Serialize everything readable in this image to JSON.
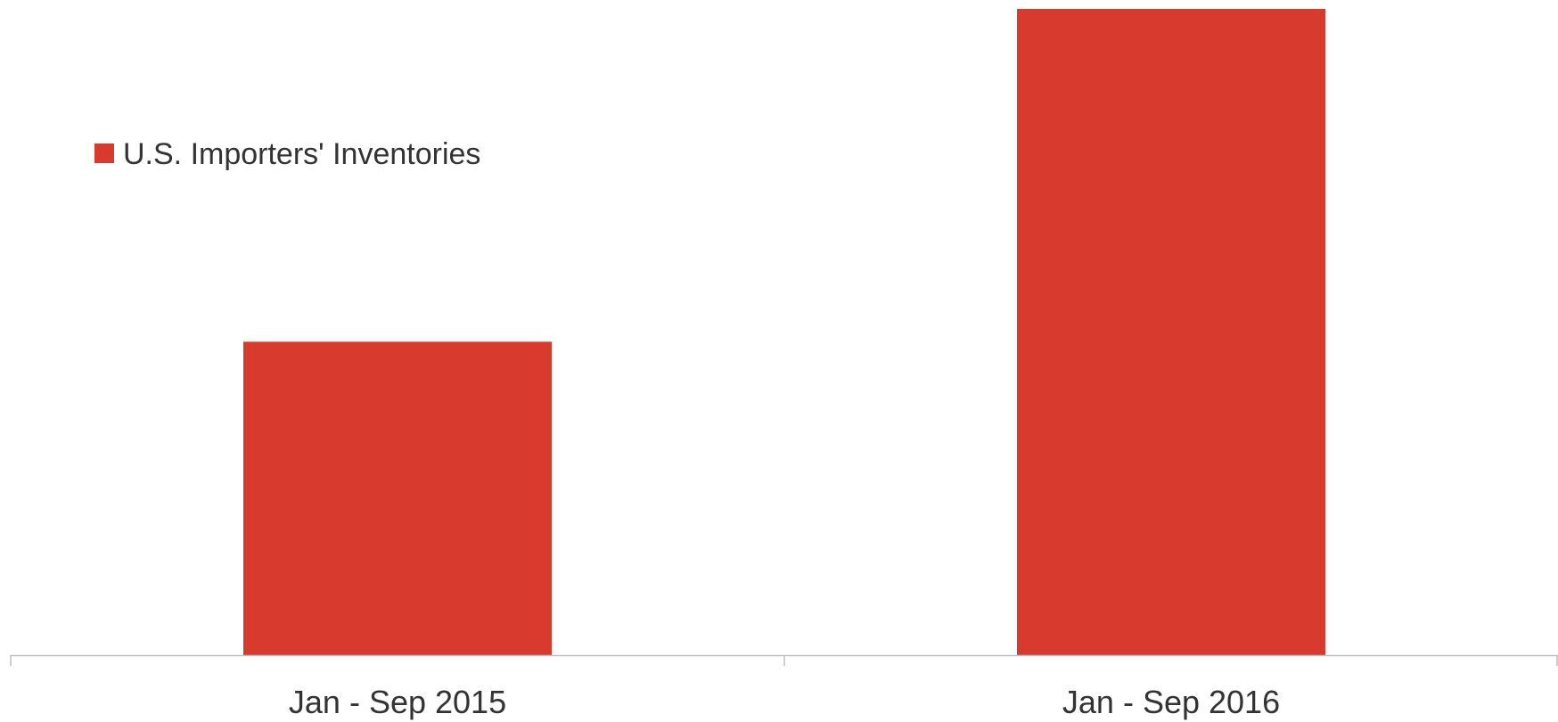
{
  "chart_data": {
    "type": "bar",
    "categories": [
      "Jan - Sep 2015",
      "Jan - Sep 2016"
    ],
    "series": [
      {
        "name": "U.S. Importers' Inventories",
        "values": [
          48.5,
          100
        ],
        "color": "#d93a2e"
      }
    ],
    "ylim": [
      0,
      100
    ],
    "grid": false,
    "legend_position": "top-left",
    "axis_color": "#bfbfbf"
  }
}
